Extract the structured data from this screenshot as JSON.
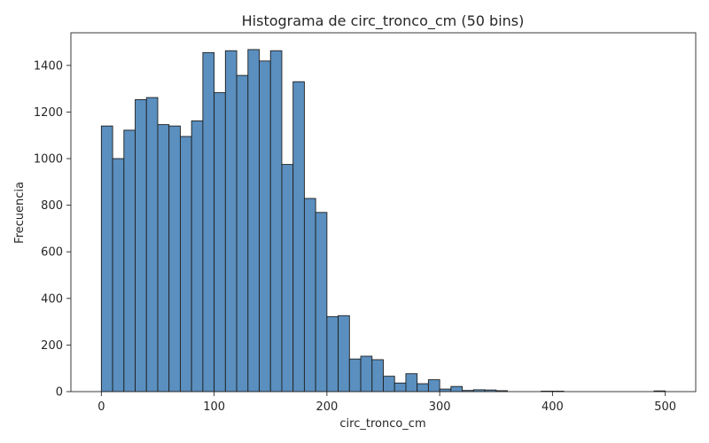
{
  "chart_data": {
    "type": "bar",
    "title": "Histograma de circ_tronco_cm (50 bins)",
    "xlabel": "circ_tronco_cm",
    "ylabel": "Frecuencia",
    "bin_start": 0,
    "bin_width": 10.0,
    "values": [
      1140,
      1000,
      1122,
      1253,
      1262,
      1146,
      1140,
      1095,
      1162,
      1455,
      1283,
      1463,
      1357,
      1468,
      1419,
      1463,
      975,
      1330,
      829,
      769,
      322,
      326,
      140,
      152,
      137,
      66,
      37,
      77,
      34,
      51,
      11,
      22,
      5,
      8,
      7,
      4,
      0,
      0,
      0,
      2,
      2,
      0,
      0,
      0,
      0,
      0,
      0,
      0,
      0,
      3
    ],
    "xlim": [
      -27,
      527
    ],
    "ylim": [
      0,
      1540
    ],
    "xticks": [
      0,
      100,
      200,
      300,
      400,
      500
    ],
    "yticks": [
      0,
      200,
      400,
      600,
      800,
      1000,
      1200,
      1400
    ],
    "bar_color": "#5a8fbf",
    "edge_color": "#1f1f1f",
    "grid": false
  }
}
